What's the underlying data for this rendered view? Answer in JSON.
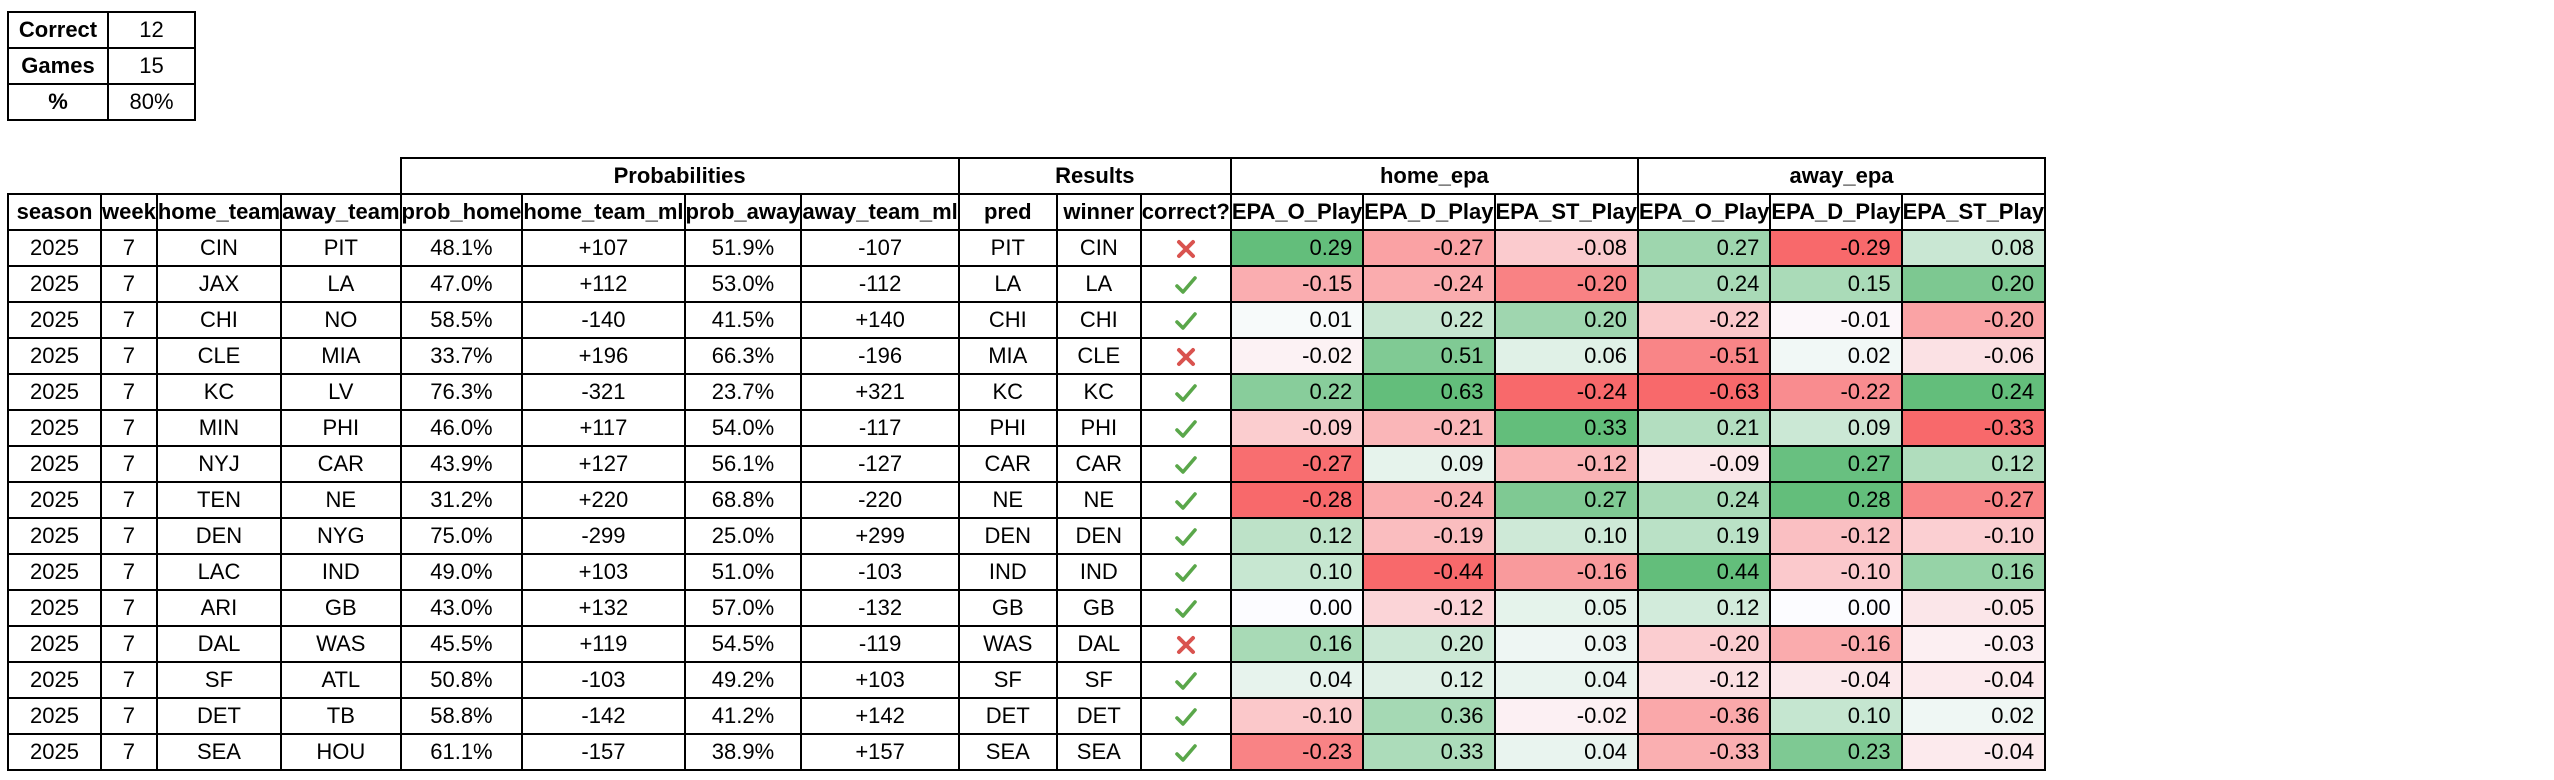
{
  "summary": [
    {
      "label": "Correct",
      "value": "12"
    },
    {
      "label": "Games",
      "value": "15"
    },
    {
      "label": "%",
      "value": "80%"
    }
  ],
  "group_headers": {
    "probabilities": "Probabilities",
    "results": "Results",
    "home_epa": "home_epa",
    "away_epa": "away_epa"
  },
  "columns": [
    "season",
    "week",
    "home_team",
    "away_team",
    "prob_home",
    "home_team_ml",
    "prob_away",
    "away_team_ml",
    "pred",
    "winner",
    "correct?",
    "EPA_O_Play",
    "EPA_D_Play",
    "EPA_ST_Play",
    "EPA_O_Play",
    "EPA_D_Play",
    "EPA_ST_Play"
  ],
  "colors": {
    "green": "#63be7b",
    "red": "#f8696b",
    "white": "#fcfcff",
    "check": "#5aa74a",
    "cross": "#d9534f"
  },
  "rows": [
    {
      "season": "2025",
      "week": "7",
      "home_team": "CIN",
      "away_team": "PIT",
      "prob_home": "48.1%",
      "home_team_ml": "+107",
      "prob_away": "51.9%",
      "away_team_ml": "-107",
      "pred": "PIT",
      "winner": "CIN",
      "correct": false,
      "epa": [
        "0.29",
        "-0.27",
        "-0.08",
        "0.27",
        "-0.29",
        "0.08"
      ]
    },
    {
      "season": "2025",
      "week": "7",
      "home_team": "JAX",
      "away_team": "LA",
      "prob_home": "47.0%",
      "home_team_ml": "+112",
      "prob_away": "53.0%",
      "away_team_ml": "-112",
      "pred": "LA",
      "winner": "LA",
      "correct": true,
      "epa": [
        "-0.15",
        "-0.24",
        "-0.20",
        "0.24",
        "0.15",
        "0.20"
      ]
    },
    {
      "season": "2025",
      "week": "7",
      "home_team": "CHI",
      "away_team": "NO",
      "prob_home": "58.5%",
      "home_team_ml": "-140",
      "prob_away": "41.5%",
      "away_team_ml": "+140",
      "pred": "CHI",
      "winner": "CHI",
      "correct": true,
      "epa": [
        "0.01",
        "0.22",
        "0.20",
        "-0.22",
        "-0.01",
        "-0.20"
      ]
    },
    {
      "season": "2025",
      "week": "7",
      "home_team": "CLE",
      "away_team": "MIA",
      "prob_home": "33.7%",
      "home_team_ml": "+196",
      "prob_away": "66.3%",
      "away_team_ml": "-196",
      "pred": "MIA",
      "winner": "CLE",
      "correct": false,
      "epa": [
        "-0.02",
        "0.51",
        "0.06",
        "-0.51",
        "0.02",
        "-0.06"
      ]
    },
    {
      "season": "2025",
      "week": "7",
      "home_team": "KC",
      "away_team": "LV",
      "prob_home": "76.3%",
      "home_team_ml": "-321",
      "prob_away": "23.7%",
      "away_team_ml": "+321",
      "pred": "KC",
      "winner": "KC",
      "correct": true,
      "epa": [
        "0.22",
        "0.63",
        "-0.24",
        "-0.63",
        "-0.22",
        "0.24"
      ]
    },
    {
      "season": "2025",
      "week": "7",
      "home_team": "MIN",
      "away_team": "PHI",
      "prob_home": "46.0%",
      "home_team_ml": "+117",
      "prob_away": "54.0%",
      "away_team_ml": "-117",
      "pred": "PHI",
      "winner": "PHI",
      "correct": true,
      "epa": [
        "-0.09",
        "-0.21",
        "0.33",
        "0.21",
        "0.09",
        "-0.33"
      ]
    },
    {
      "season": "2025",
      "week": "7",
      "home_team": "NYJ",
      "away_team": "CAR",
      "prob_home": "43.9%",
      "home_team_ml": "+127",
      "prob_away": "56.1%",
      "away_team_ml": "-127",
      "pred": "CAR",
      "winner": "CAR",
      "correct": true,
      "epa": [
        "-0.27",
        "0.09",
        "-0.12",
        "-0.09",
        "0.27",
        "0.12"
      ]
    },
    {
      "season": "2025",
      "week": "7",
      "home_team": "TEN",
      "away_team": "NE",
      "prob_home": "31.2%",
      "home_team_ml": "+220",
      "prob_away": "68.8%",
      "away_team_ml": "-220",
      "pred": "NE",
      "winner": "NE",
      "correct": true,
      "epa": [
        "-0.28",
        "-0.24",
        "0.27",
        "0.24",
        "0.28",
        "-0.27"
      ]
    },
    {
      "season": "2025",
      "week": "7",
      "home_team": "DEN",
      "away_team": "NYG",
      "prob_home": "75.0%",
      "home_team_ml": "-299",
      "prob_away": "25.0%",
      "away_team_ml": "+299",
      "pred": "DEN",
      "winner": "DEN",
      "correct": true,
      "epa": [
        "0.12",
        "-0.19",
        "0.10",
        "0.19",
        "-0.12",
        "-0.10"
      ]
    },
    {
      "season": "2025",
      "week": "7",
      "home_team": "LAC",
      "away_team": "IND",
      "prob_home": "49.0%",
      "home_team_ml": "+103",
      "prob_away": "51.0%",
      "away_team_ml": "-103",
      "pred": "IND",
      "winner": "IND",
      "correct": true,
      "epa": [
        "0.10",
        "-0.44",
        "-0.16",
        "0.44",
        "-0.10",
        "0.16"
      ]
    },
    {
      "season": "2025",
      "week": "7",
      "home_team": "ARI",
      "away_team": "GB",
      "prob_home": "43.0%",
      "home_team_ml": "+132",
      "prob_away": "57.0%",
      "away_team_ml": "-132",
      "pred": "GB",
      "winner": "GB",
      "correct": true,
      "epa": [
        "0.00",
        "-0.12",
        "0.05",
        "0.12",
        "0.00",
        "-0.05"
      ]
    },
    {
      "season": "2025",
      "week": "7",
      "home_team": "DAL",
      "away_team": "WAS",
      "prob_home": "45.5%",
      "home_team_ml": "+119",
      "prob_away": "54.5%",
      "away_team_ml": "-119",
      "pred": "WAS",
      "winner": "DAL",
      "correct": false,
      "epa": [
        "0.16",
        "0.20",
        "0.03",
        "-0.20",
        "-0.16",
        "-0.03"
      ]
    },
    {
      "season": "2025",
      "week": "7",
      "home_team": "SF",
      "away_team": "ATL",
      "prob_home": "50.8%",
      "home_team_ml": "-103",
      "prob_away": "49.2%",
      "away_team_ml": "+103",
      "pred": "SF",
      "winner": "SF",
      "correct": true,
      "epa": [
        "0.04",
        "0.12",
        "0.04",
        "-0.12",
        "-0.04",
        "-0.04"
      ]
    },
    {
      "season": "2025",
      "week": "7",
      "home_team": "DET",
      "away_team": "TB",
      "prob_home": "58.8%",
      "home_team_ml": "-142",
      "prob_away": "41.2%",
      "away_team_ml": "+142",
      "pred": "DET",
      "winner": "DET",
      "correct": true,
      "epa": [
        "-0.10",
        "0.36",
        "-0.02",
        "-0.36",
        "0.10",
        "0.02"
      ]
    },
    {
      "season": "2025",
      "week": "7",
      "home_team": "SEA",
      "away_team": "HOU",
      "prob_home": "61.1%",
      "home_team_ml": "-157",
      "prob_away": "38.9%",
      "away_team_ml": "+157",
      "pred": "SEA",
      "winner": "SEA",
      "correct": true,
      "epa": [
        "-0.23",
        "0.33",
        "0.04",
        "-0.33",
        "0.23",
        "-0.04"
      ]
    }
  ]
}
